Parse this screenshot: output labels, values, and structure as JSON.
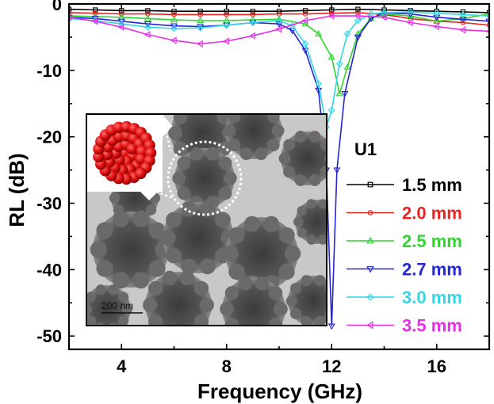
{
  "chart_data": {
    "type": "line",
    "xlabel": "Frequency (GHz)",
    "ylabel": "RL (dB)",
    "xlim": [
      2,
      18
    ],
    "ylim": [
      -52,
      0
    ],
    "xticks": [
      4,
      8,
      12,
      16
    ],
    "yticks": [
      0,
      -10,
      -20,
      -30,
      -40,
      -50
    ],
    "grid": false,
    "legend_title": "U1",
    "legend_position": "right",
    "series": [
      {
        "name": "1.5 mm",
        "color": "#000000",
        "marker": "square",
        "x": [
          2,
          3,
          4,
          5,
          6,
          7,
          8,
          9,
          10,
          11,
          12,
          13,
          14,
          15,
          16,
          17,
          18
        ],
        "y": [
          -0.8,
          -0.9,
          -1.0,
          -1.0,
          -1.1,
          -1.1,
          -1.1,
          -1.1,
          -1.1,
          -1.0,
          -0.9,
          -0.8,
          -0.9,
          -1.0,
          -1.1,
          -1.2,
          -1.3
        ]
      },
      {
        "name": "2.0 mm",
        "color": "#e8231f",
        "marker": "circle",
        "x": [
          2,
          3,
          4,
          5,
          6,
          7,
          8,
          9,
          10,
          11,
          12,
          13,
          14,
          15,
          16,
          17,
          18
        ],
        "y": [
          -1.3,
          -1.4,
          -1.5,
          -1.5,
          -1.6,
          -1.6,
          -1.6,
          -1.6,
          -1.5,
          -1.5,
          -1.4,
          -1.3,
          -1.6,
          -2.2,
          -2.6,
          -2.8,
          -3.2
        ]
      },
      {
        "name": "2.5 mm",
        "color": "#2fd42f",
        "marker": "triangle-up",
        "x": [
          2,
          3,
          4,
          5,
          6,
          7,
          8,
          9,
          10,
          11,
          11.5,
          12,
          12.3,
          12.6,
          13,
          13.5,
          14,
          15,
          16,
          17,
          18
        ],
        "y": [
          -1.8,
          -1.9,
          -2.0,
          -2.2,
          -2.4,
          -2.5,
          -2.5,
          -2.4,
          -2.3,
          -3.0,
          -4.5,
          -8.0,
          -13.5,
          -9.5,
          -4.5,
          -2.2,
          -1.5,
          -1.8,
          -2.6,
          -2.2,
          -1.5
        ]
      },
      {
        "name": "2.7 mm",
        "color": "#2424d8",
        "marker": "triangle-down",
        "x": [
          2,
          3,
          4,
          5,
          6,
          7,
          8,
          9,
          10,
          10.5,
          11,
          11.5,
          11.8,
          12,
          12.2,
          12.5,
          13,
          13.5,
          14,
          15,
          16,
          17,
          18
        ],
        "y": [
          -2.0,
          -2.2,
          -2.6,
          -3.0,
          -3.3,
          -3.4,
          -3.2,
          -2.8,
          -3.0,
          -4.0,
          -7.0,
          -13.0,
          -25.0,
          -48.5,
          -25.0,
          -13.5,
          -5.0,
          -2.2,
          -1.3,
          -1.5,
          -2.0,
          -2.3,
          -2.6
        ]
      },
      {
        "name": "3.0 mm",
        "color": "#31d7e6",
        "marker": "diamond",
        "x": [
          2,
          3,
          4,
          5,
          6,
          7,
          8,
          9,
          10,
          10.5,
          11,
          11.5,
          11.8,
          12,
          12.3,
          12.6,
          13,
          13.5,
          14,
          15,
          16,
          17,
          18
        ],
        "y": [
          -2.2,
          -2.5,
          -3.0,
          -3.5,
          -3.7,
          -3.6,
          -3.2,
          -2.8,
          -2.5,
          -3.3,
          -6.0,
          -12.0,
          -18.5,
          -16.0,
          -9.0,
          -4.5,
          -2.5,
          -1.5,
          -1.3,
          -1.2,
          -1.4,
          -1.6,
          -1.8
        ]
      },
      {
        "name": "3.5 mm",
        "color": "#e62ee6",
        "marker": "triangle-left",
        "x": [
          2,
          3,
          4,
          5,
          6,
          7,
          8,
          9,
          10,
          11,
          12,
          13,
          14,
          15,
          16,
          17,
          18
        ],
        "y": [
          -2.0,
          -2.6,
          -3.5,
          -4.6,
          -5.5,
          -6.0,
          -5.6,
          -4.8,
          -3.8,
          -2.5,
          -1.8,
          -1.8,
          -2.0,
          -2.8,
          -3.4,
          -3.9,
          -4.1
        ]
      }
    ]
  },
  "inset": {
    "scale_bar_label": "200 nm"
  }
}
